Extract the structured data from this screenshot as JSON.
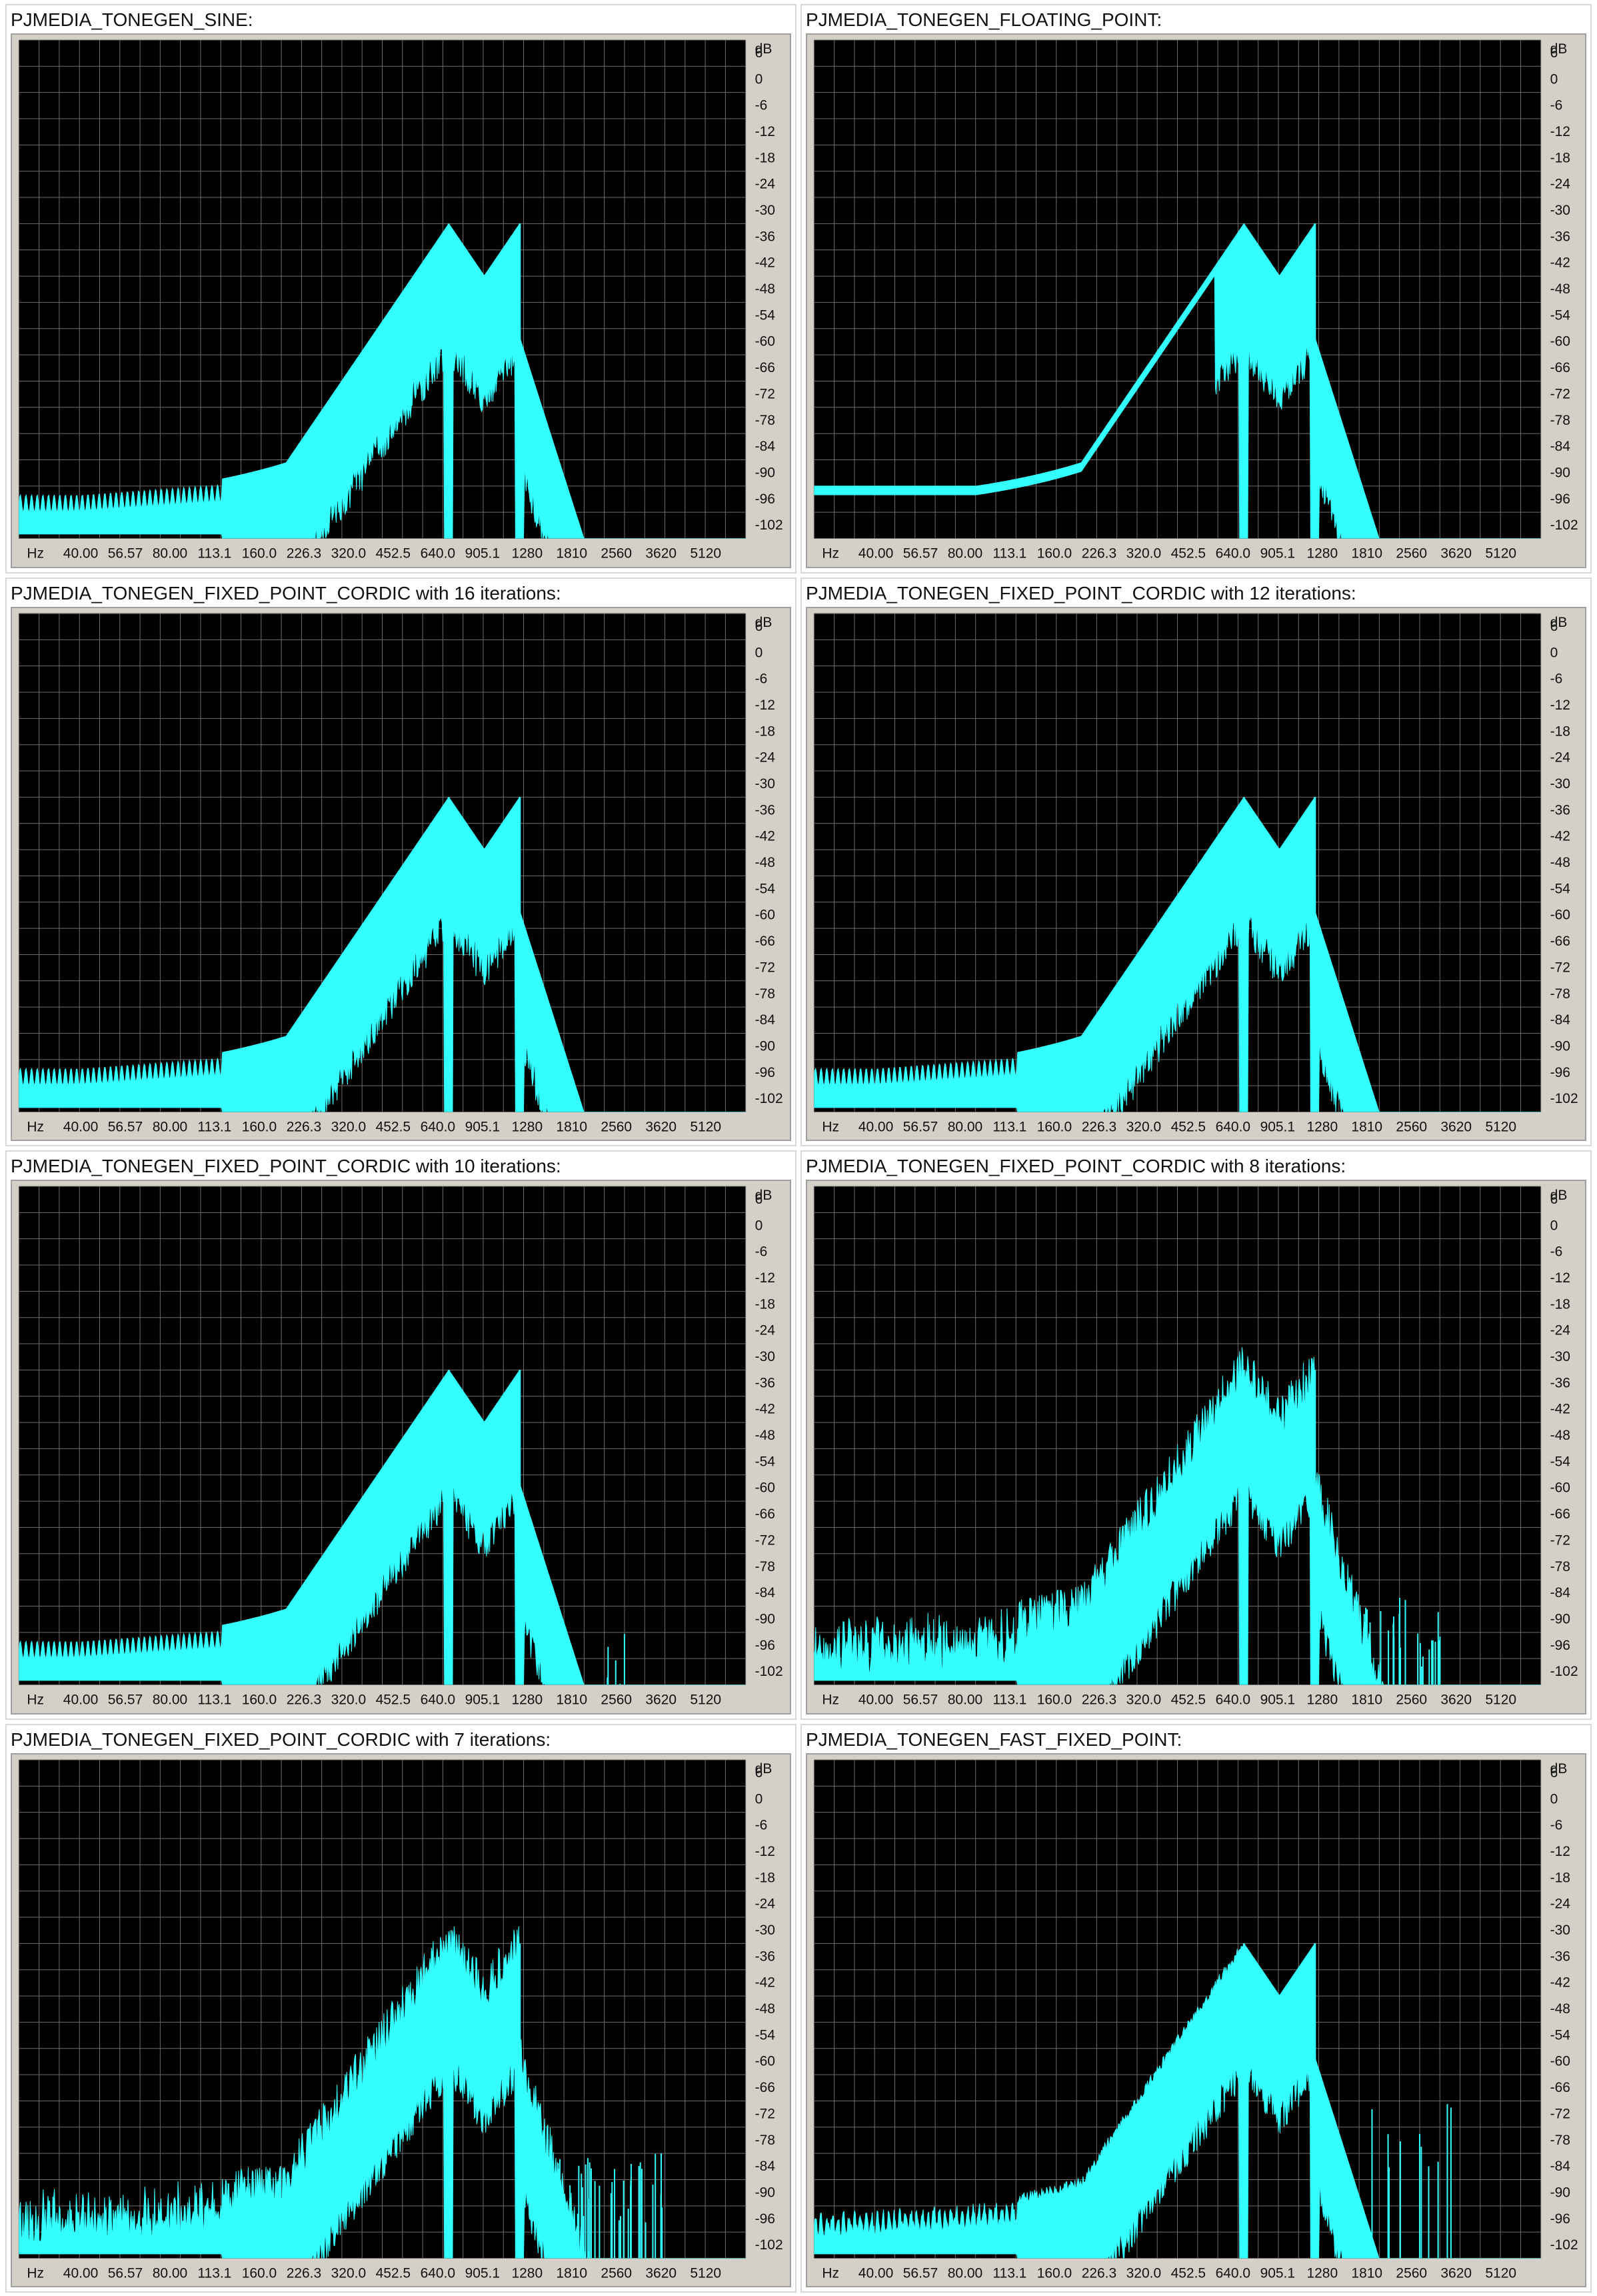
{
  "chart_data": [
    {
      "type": "line",
      "title": "PJMEDIA_TONEGEN_SINE:",
      "variant": "sine",
      "xlabel": "Hz",
      "ylabel": "dB",
      "x_ticks": [
        "40.00",
        "56.57",
        "80.00",
        "113.1",
        "160.0",
        "226.3",
        "320.0",
        "452.5",
        "640.0",
        "905.1",
        "1280",
        "1810",
        "2560",
        "3620",
        "5120"
      ],
      "y_ticks": [
        "6",
        "0",
        "-6",
        "-12",
        "-18",
        "-24",
        "-30",
        "-36",
        "-42",
        "-48",
        "-54",
        "-60",
        "-66",
        "-72",
        "-78",
        "-84",
        "-90",
        "-96",
        "-102"
      ],
      "ylim": [
        -108,
        6
      ],
      "peaks_hz": [
        697,
        1209
      ],
      "peak_db": -36,
      "series_color": "#33ffff"
    },
    {
      "type": "line",
      "title": "PJMEDIA_TONEGEN_FLOATING_POINT:",
      "variant": "float",
      "xlabel": "Hz",
      "ylabel": "dB",
      "x_ticks": [
        "40.00",
        "56.57",
        "80.00",
        "113.1",
        "160.0",
        "226.3",
        "320.0",
        "452.5",
        "640.0",
        "905.1",
        "1280",
        "1810",
        "2560",
        "3620",
        "5120"
      ],
      "y_ticks": [
        "6",
        "0",
        "-6",
        "-12",
        "-18",
        "-24",
        "-30",
        "-36",
        "-42",
        "-48",
        "-54",
        "-60",
        "-66",
        "-72",
        "-78",
        "-84",
        "-90",
        "-96",
        "-102"
      ],
      "ylim": [
        -108,
        6
      ],
      "peaks_hz": [
        697,
        1209
      ],
      "peak_db": -36,
      "series_color": "#33ffff"
    },
    {
      "type": "line",
      "title": "PJMEDIA_TONEGEN_FIXED_POINT_CORDIC with 16 iterations:",
      "variant": "cordic16",
      "xlabel": "Hz",
      "ylabel": "dB",
      "x_ticks": [
        "40.00",
        "56.57",
        "80.00",
        "113.1",
        "160.0",
        "226.3",
        "320.0",
        "452.5",
        "640.0",
        "905.1",
        "1280",
        "1810",
        "2560",
        "3620",
        "5120"
      ],
      "y_ticks": [
        "6",
        "0",
        "-6",
        "-12",
        "-18",
        "-24",
        "-30",
        "-36",
        "-42",
        "-48",
        "-54",
        "-60",
        "-66",
        "-72",
        "-78",
        "-84",
        "-90",
        "-96",
        "-102"
      ],
      "ylim": [
        -108,
        6
      ],
      "peaks_hz": [
        697,
        1209
      ],
      "peak_db": -36,
      "series_color": "#33ffff"
    },
    {
      "type": "line",
      "title": "PJMEDIA_TONEGEN_FIXED_POINT_CORDIC with 12 iterations:",
      "variant": "cordic12",
      "xlabel": "Hz",
      "ylabel": "dB",
      "x_ticks": [
        "40.00",
        "56.57",
        "80.00",
        "113.1",
        "160.0",
        "226.3",
        "320.0",
        "452.5",
        "640.0",
        "905.1",
        "1280",
        "1810",
        "2560",
        "3620",
        "5120"
      ],
      "y_ticks": [
        "6",
        "0",
        "-6",
        "-12",
        "-18",
        "-24",
        "-30",
        "-36",
        "-42",
        "-48",
        "-54",
        "-60",
        "-66",
        "-72",
        "-78",
        "-84",
        "-90",
        "-96",
        "-102"
      ],
      "ylim": [
        -108,
        6
      ],
      "peaks_hz": [
        697,
        1209
      ],
      "peak_db": -36,
      "series_color": "#33ffff"
    },
    {
      "type": "line",
      "title": "PJMEDIA_TONEGEN_FIXED_POINT_CORDIC with 10 iterations:",
      "variant": "cordic10",
      "xlabel": "Hz",
      "ylabel": "dB",
      "x_ticks": [
        "40.00",
        "56.57",
        "80.00",
        "113.1",
        "160.0",
        "226.3",
        "320.0",
        "452.5",
        "640.0",
        "905.1",
        "1280",
        "1810",
        "2560",
        "3620",
        "5120"
      ],
      "y_ticks": [
        "6",
        "0",
        "-6",
        "-12",
        "-18",
        "-24",
        "-30",
        "-36",
        "-42",
        "-48",
        "-54",
        "-60",
        "-66",
        "-72",
        "-78",
        "-84",
        "-90",
        "-96",
        "-102"
      ],
      "ylim": [
        -108,
        6
      ],
      "peaks_hz": [
        697,
        1209
      ],
      "peak_db": -36,
      "series_color": "#33ffff"
    },
    {
      "type": "line",
      "title": "PJMEDIA_TONEGEN_FIXED_POINT_CORDIC with 8 iterations:",
      "variant": "cordic8",
      "xlabel": "Hz",
      "ylabel": "dB",
      "x_ticks": [
        "40.00",
        "56.57",
        "80.00",
        "113.1",
        "160.0",
        "226.3",
        "320.0",
        "452.5",
        "640.0",
        "905.1",
        "1280",
        "1810",
        "2560",
        "3620",
        "5120"
      ],
      "y_ticks": [
        "6",
        "0",
        "-6",
        "-12",
        "-18",
        "-24",
        "-30",
        "-36",
        "-42",
        "-48",
        "-54",
        "-60",
        "-66",
        "-72",
        "-78",
        "-84",
        "-90",
        "-96",
        "-102"
      ],
      "ylim": [
        -108,
        6
      ],
      "peaks_hz": [
        697,
        1209
      ],
      "peak_db": -36,
      "series_color": "#33ffff"
    },
    {
      "type": "line",
      "title": "PJMEDIA_TONEGEN_FIXED_POINT_CORDIC with 7 iterations:",
      "variant": "cordic7",
      "xlabel": "Hz",
      "ylabel": "dB",
      "x_ticks": [
        "40.00",
        "56.57",
        "80.00",
        "113.1",
        "160.0",
        "226.3",
        "320.0",
        "452.5",
        "640.0",
        "905.1",
        "1280",
        "1810",
        "2560",
        "3620",
        "5120"
      ],
      "y_ticks": [
        "6",
        "0",
        "-6",
        "-12",
        "-18",
        "-24",
        "-30",
        "-36",
        "-42",
        "-48",
        "-54",
        "-60",
        "-66",
        "-72",
        "-78",
        "-84",
        "-90",
        "-96",
        "-102"
      ],
      "ylim": [
        -108,
        6
      ],
      "peaks_hz": [
        697,
        1209
      ],
      "peak_db": -36,
      "series_color": "#33ffff"
    },
    {
      "type": "line",
      "title": "PJMEDIA_TONEGEN_FAST_FIXED_POINT:",
      "variant": "fast",
      "xlabel": "Hz",
      "ylabel": "dB",
      "x_ticks": [
        "40.00",
        "56.57",
        "80.00",
        "113.1",
        "160.0",
        "226.3",
        "320.0",
        "452.5",
        "640.0",
        "905.1",
        "1280",
        "1810",
        "2560",
        "3620",
        "5120"
      ],
      "y_ticks": [
        "6",
        "0",
        "-6",
        "-12",
        "-18",
        "-24",
        "-30",
        "-36",
        "-42",
        "-48",
        "-54",
        "-60",
        "-66",
        "-72",
        "-78",
        "-84",
        "-90",
        "-96",
        "-102"
      ],
      "ylim": [
        -108,
        6
      ],
      "peaks_hz": [
        697,
        1209
      ],
      "peak_db": -36,
      "series_color": "#33ffff"
    }
  ]
}
